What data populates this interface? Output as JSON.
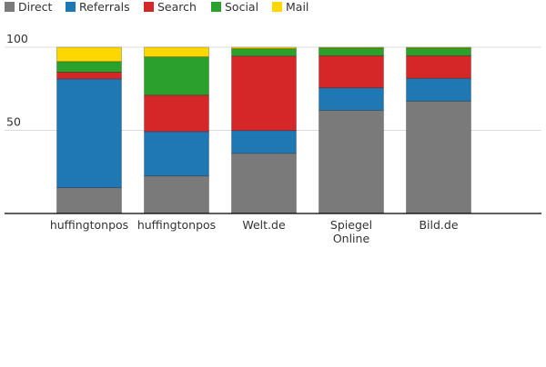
{
  "chart_data": {
    "type": "bar",
    "stacked": true,
    "categories": [
      "huffingtonpos",
      "huffingtonpos",
      "Welt.de",
      "Spiegel Online",
      "Bild.de"
    ],
    "series": [
      {
        "name": "Direct",
        "color": "#7a7a7a",
        "values": [
          15.5,
          22.6,
          36.2,
          62.1,
          67.6
        ]
      },
      {
        "name": "Referrals",
        "color": "#1f77b4",
        "values": [
          65.5,
          26.7,
          13.7,
          13.5,
          13.7
        ]
      },
      {
        "name": "Search",
        "color": "#d62728",
        "values": [
          4.0,
          21.9,
          44.8,
          19.3,
          13.6
        ]
      },
      {
        "name": "Social",
        "color": "#2ca02c",
        "values": [
          6.4,
          23.0,
          4.4,
          4.7,
          4.7
        ]
      },
      {
        "name": "Mail",
        "color": "#ffd700",
        "values": [
          8.6,
          5.8,
          0.9,
          0.4,
          0.4
        ]
      }
    ],
    "yticks": [
      "50",
      "100"
    ],
    "ylim": [
      0,
      100
    ],
    "grid": true,
    "legend": "top-left",
    "title": "",
    "xlabel": "",
    "ylabel": ""
  }
}
